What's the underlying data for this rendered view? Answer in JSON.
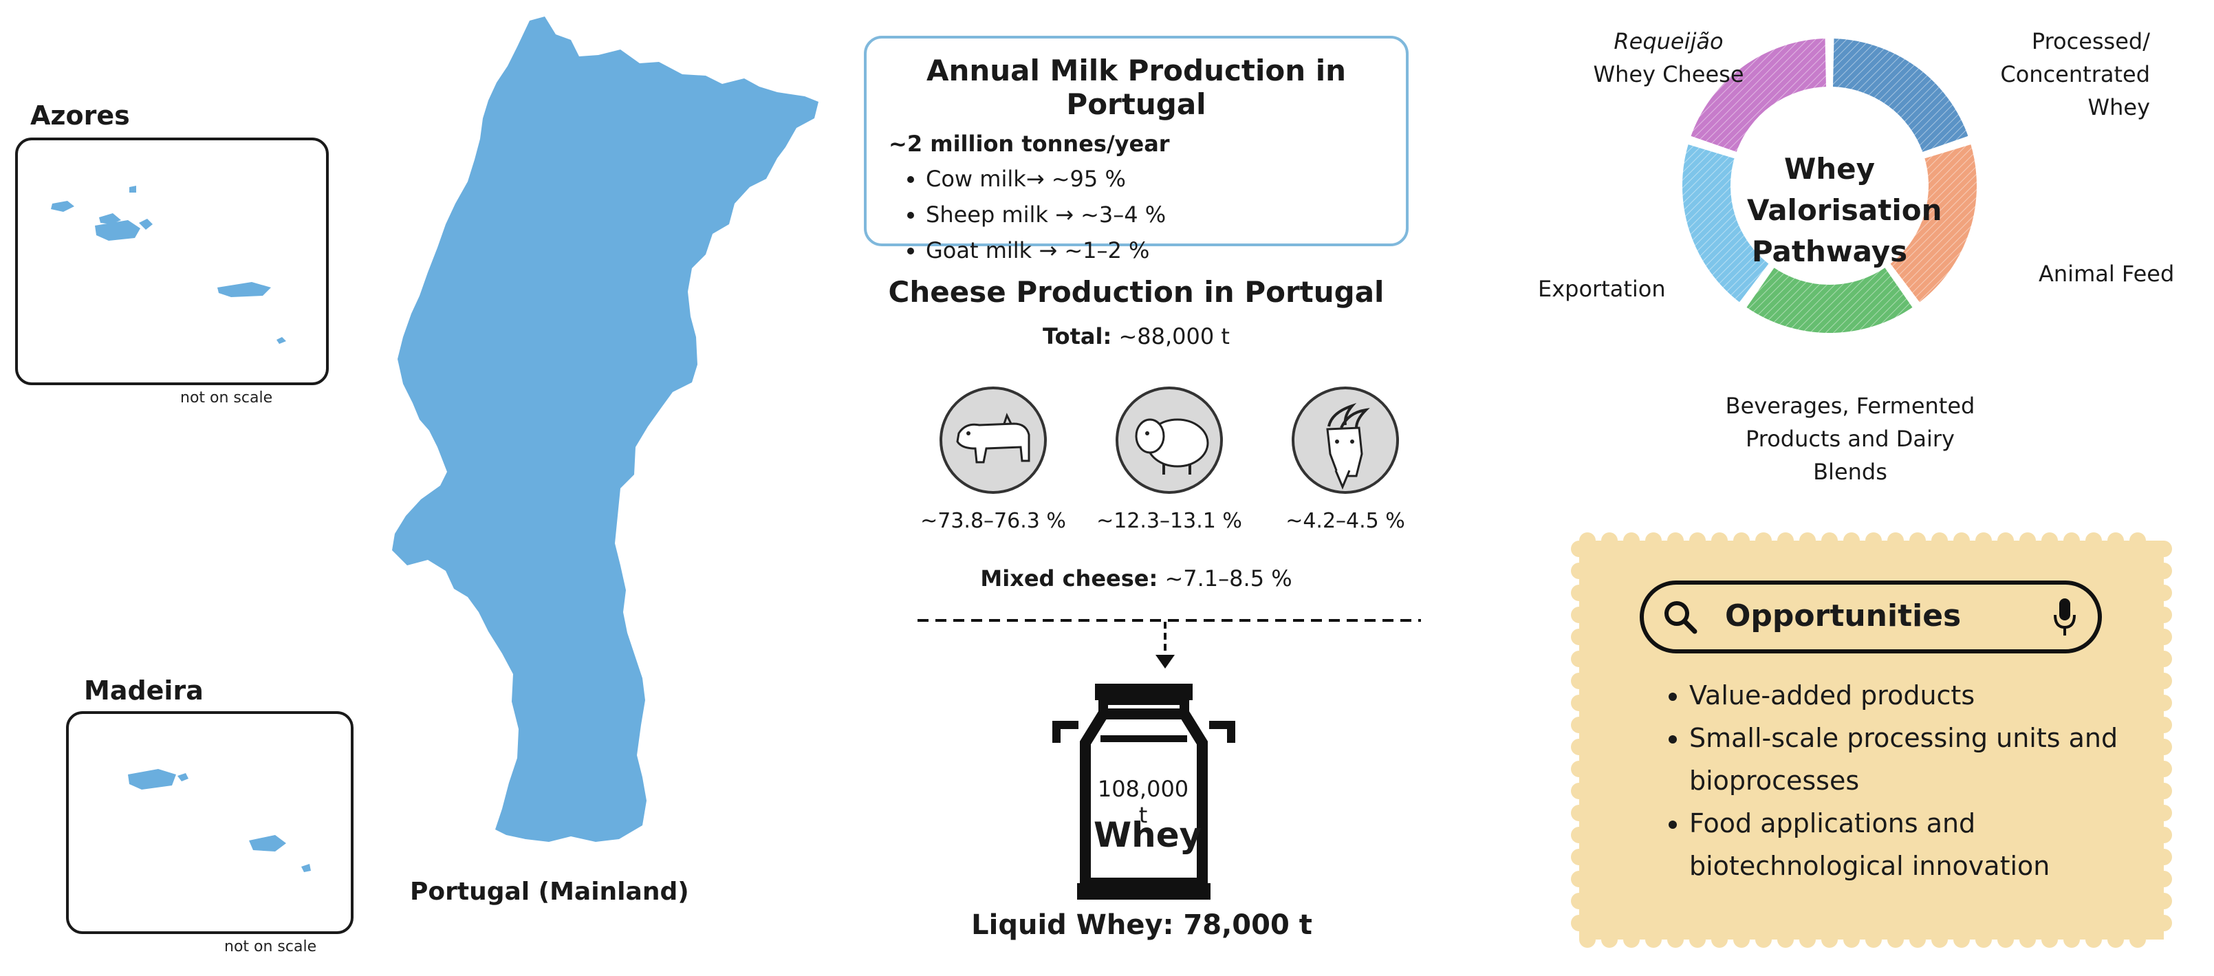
{
  "map": {
    "mainland_label": "Portugal (Mainland)",
    "azores_title": "Azores",
    "madeira_title": "Madeira",
    "scale_note": "not on scale",
    "land_color": "#6aaede"
  },
  "milk": {
    "title": "Annual Milk Production in Portugal",
    "subtitle": "~2 million tonnes/year",
    "items": [
      "Cow milk→ ~95 %",
      "Sheep milk → ~3–4 %",
      "Goat milk → ~1–2 %"
    ],
    "border_color": "#7fb8dc"
  },
  "cheese": {
    "title": "Cheese Production in Portugal",
    "total_label": "Total:",
    "total_value": " ~88,000 t",
    "animals": [
      {
        "icon": "cow-icon",
        "pct": "~73.8–76.3 %"
      },
      {
        "icon": "sheep-icon",
        "pct": "~12.3–13.1 %"
      },
      {
        "icon": "goat-icon",
        "pct": "~4.2–4.5 %"
      }
    ],
    "mixed_label": "Mixed cheese:",
    "mixed_value": " ~7.1–8.5 %"
  },
  "whey": {
    "quantity": "108,000 t",
    "label": "Whey",
    "liquid": "Liquid Whey: 78,000 t"
  },
  "pathways": {
    "center": [
      "Whey",
      "Valorisation",
      "Pathways"
    ],
    "segments": [
      {
        "label_italic": "Requeijão",
        "label": "Whey Cheese",
        "color": "#c77ccb"
      },
      {
        "label": "Processed/ Concentrated Whey",
        "lines": [
          "Processed/",
          "Concentrated",
          "Whey"
        ],
        "color": "#5b93c6"
      },
      {
        "label": "Animal Feed",
        "color": "#f1a37d"
      },
      {
        "lines": [
          "Beverages, Fermented",
          "Products and Dairy Blends"
        ],
        "color": "#66be70"
      },
      {
        "label": "Exportation",
        "color": "#7ec5ea"
      }
    ]
  },
  "opportunities": {
    "title": "Opportunities",
    "items": [
      "Value-added products",
      "Small-scale processing units and bioprocesses",
      "Food applications and biotechnological innovation"
    ],
    "bg_color": "#f5deaa"
  }
}
